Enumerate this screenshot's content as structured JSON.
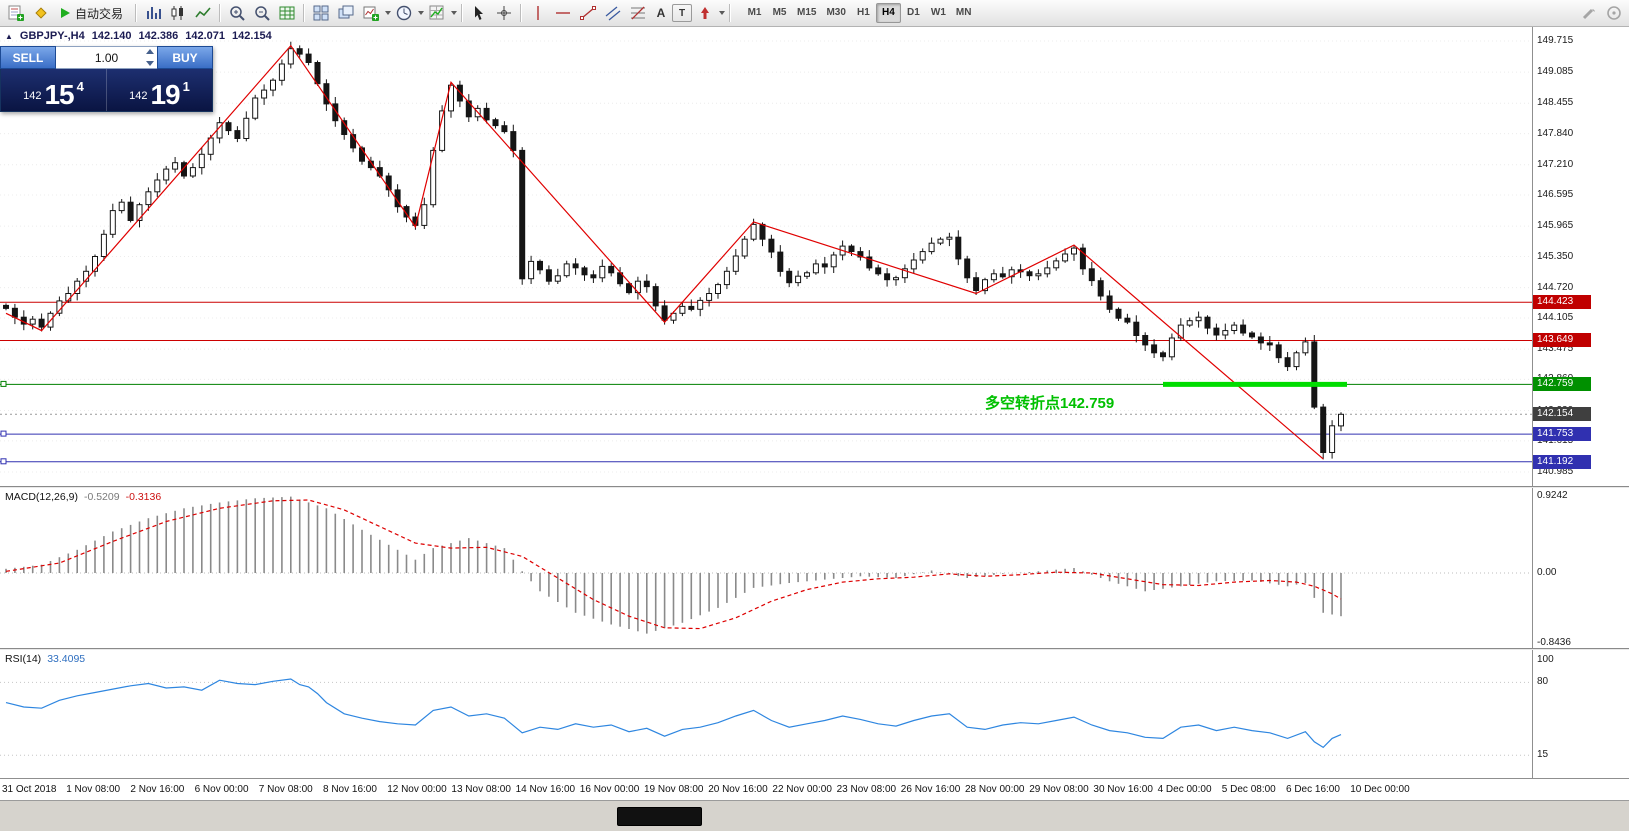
{
  "icons": {
    "collapse_triangle": "▲",
    "text_tool": "A",
    "frame_tool": "T"
  },
  "toolbar": {
    "autotrading_label": "自动交易",
    "timeframes": [
      "M1",
      "M5",
      "M15",
      "M30",
      "H1",
      "H4",
      "D1",
      "W1",
      "MN"
    ],
    "active_timeframe": "H4"
  },
  "chart": {
    "symbol_header": {
      "symbol": "GBPJPY-,H4",
      "open": "142.140",
      "high": "142.386",
      "low": "142.071",
      "close": "142.154"
    },
    "trade_panel": {
      "sell_label": "SELL",
      "buy_label": "BUY",
      "lot": "1.00",
      "sell_price_small": "142",
      "sell_price_big": "15",
      "sell_price_sup": "4",
      "buy_price_small": "142",
      "buy_price_big": "19",
      "buy_price_sup": "1"
    },
    "annotation": {
      "text": "多空转折点142.759",
      "color": "#00c000",
      "x_index": 110,
      "price": 142.28
    }
  },
  "macd": {
    "title": "MACD(12,26,9)",
    "value_main": "-0.5209",
    "value_signal": "-0.3136",
    "axis": [
      {
        "text": "0.9242",
        "v": 0.9242
      },
      {
        "text": "0.00",
        "v": 0
      },
      {
        "text": "-0.8436",
        "v": -0.8436
      }
    ]
  },
  "rsi": {
    "title": "RSI(14)",
    "value": "33.4095",
    "axis": [
      {
        "text": "100",
        "v": 100
      },
      {
        "text": "80",
        "v": 80
      },
      {
        "text": "15",
        "v": 15
      }
    ]
  },
  "chart_data": {
    "type": "candlestick+indicators",
    "symbol": "GBPJPY-",
    "timeframe": "H4",
    "y_axis": {
      "top": 149.715,
      "bottom": 140.985
    },
    "y_ticks": [
      149.715,
      149.085,
      148.455,
      147.84,
      147.21,
      146.595,
      145.965,
      145.35,
      144.72,
      144.105,
      143.475,
      142.86,
      142.23,
      141.615,
      140.985
    ],
    "close": [
      144.3,
      144.12,
      143.98,
      144.08,
      143.92,
      144.2,
      144.45,
      144.6,
      144.85,
      145.05,
      145.35,
      145.8,
      146.28,
      146.45,
      146.08,
      146.4,
      146.66,
      146.9,
      147.12,
      147.25,
      146.98,
      147.15,
      147.42,
      147.75,
      148.06,
      147.9,
      147.74,
      148.15,
      148.56,
      148.72,
      148.92,
      149.25,
      149.56,
      149.45,
      149.28,
      148.85,
      148.44,
      148.1,
      147.82,
      147.55,
      147.28,
      147.15,
      146.98,
      146.7,
      146.36,
      146.15,
      145.98,
      146.4,
      147.5,
      148.3,
      148.82,
      148.5,
      148.18,
      148.35,
      148.12,
      148.0,
      147.88,
      147.5,
      144.9,
      145.25,
      145.08,
      144.85,
      144.96,
      145.2,
      145.12,
      144.98,
      144.92,
      145.15,
      145.02,
      144.8,
      144.62,
      144.85,
      144.74,
      144.35,
      144.06,
      144.2,
      144.34,
      144.28,
      144.46,
      144.6,
      144.78,
      145.05,
      145.36,
      145.7,
      146.0,
      145.7,
      145.44,
      145.05,
      144.82,
      144.95,
      145.02,
      145.2,
      145.14,
      145.38,
      145.56,
      145.45,
      145.34,
      145.12,
      145.0,
      144.88,
      144.92,
      145.1,
      145.28,
      145.45,
      145.62,
      145.7,
      145.74,
      145.3,
      144.92,
      144.66,
      144.88,
      145.0,
      144.94,
      145.08,
      145.04,
      144.96,
      145.0,
      145.12,
      145.26,
      145.4,
      145.52,
      145.1,
      144.86,
      144.55,
      144.28,
      144.1,
      144.02,
      143.75,
      143.56,
      143.4,
      143.32,
      143.7,
      143.96,
      144.05,
      144.12,
      143.9,
      143.76,
      143.85,
      143.96,
      143.8,
      143.72,
      143.6,
      143.56,
      143.3,
      143.12,
      143.4,
      143.62,
      142.3,
      141.38,
      141.92,
      142.154
    ],
    "zigzag": [
      [
        0,
        144.2
      ],
      [
        4,
        143.85
      ],
      [
        32,
        149.62
      ],
      [
        46,
        145.95
      ],
      [
        50,
        148.88
      ],
      [
        74,
        144.02
      ],
      [
        84,
        146.05
      ],
      [
        109,
        144.6
      ],
      [
        120,
        145.58
      ],
      [
        148,
        141.25
      ]
    ],
    "hlines": [
      {
        "price": 144.423,
        "color": "#cc0000",
        "label": "144.423",
        "label_bg": "#c00000"
      },
      {
        "price": 143.649,
        "color": "#cc0000",
        "label": "143.649",
        "label_bg": "#c00000"
      },
      {
        "price": 142.759,
        "color": "#008000",
        "label": "142.759",
        "label_bg": "#009000",
        "bold_segment": [
          130,
          150
        ],
        "bold_color": "#00dd00",
        "marker": true
      },
      {
        "price": 141.753,
        "color": "#3030b0",
        "label": "141.753",
        "label_bg": "#3030b0",
        "marker": true
      },
      {
        "price": 141.192,
        "color": "#3030b0",
        "label": "141.192",
        "label_bg": "#3030b0",
        "marker": true
      }
    ],
    "bid_line": {
      "price": 142.154,
      "label": "142.154",
      "label_bg": "#3f3f3f",
      "color": "#999999"
    },
    "macd": {
      "range": [
        -0.8436,
        0.9242
      ],
      "main_points": [
        [
          0,
          0.05
        ],
        [
          4,
          0.1
        ],
        [
          8,
          0.28
        ],
        [
          12,
          0.5
        ],
        [
          16,
          0.66
        ],
        [
          20,
          0.78
        ],
        [
          24,
          0.85
        ],
        [
          28,
          0.9
        ],
        [
          32,
          0.92
        ],
        [
          36,
          0.78
        ],
        [
          40,
          0.52
        ],
        [
          44,
          0.28
        ],
        [
          46,
          0.16
        ],
        [
          48,
          0.3
        ],
        [
          52,
          0.42
        ],
        [
          56,
          0.3
        ],
        [
          58,
          0.02
        ],
        [
          60,
          -0.22
        ],
        [
          64,
          -0.48
        ],
        [
          68,
          -0.62
        ],
        [
          72,
          -0.73
        ],
        [
          76,
          -0.6
        ],
        [
          80,
          -0.42
        ],
        [
          84,
          -0.18
        ],
        [
          88,
          -0.12
        ],
        [
          92,
          -0.08
        ],
        [
          96,
          -0.04
        ],
        [
          100,
          -0.06
        ],
        [
          104,
          0.03
        ],
        [
          108,
          -0.06
        ],
        [
          112,
          -0.01
        ],
        [
          116,
          0.02
        ],
        [
          120,
          0.06
        ],
        [
          124,
          -0.1
        ],
        [
          128,
          -0.22
        ],
        [
          132,
          -0.16
        ],
        [
          136,
          -0.1
        ],
        [
          140,
          -0.09
        ],
        [
          144,
          -0.16
        ],
        [
          146,
          -0.12
        ],
        [
          147,
          -0.3
        ],
        [
          148,
          -0.48
        ],
        [
          150,
          -0.52
        ]
      ],
      "signal_points": [
        [
          0,
          0.02
        ],
        [
          6,
          0.12
        ],
        [
          12,
          0.38
        ],
        [
          18,
          0.62
        ],
        [
          24,
          0.78
        ],
        [
          30,
          0.87
        ],
        [
          34,
          0.88
        ],
        [
          38,
          0.76
        ],
        [
          42,
          0.56
        ],
        [
          46,
          0.36
        ],
        [
          50,
          0.3
        ],
        [
          54,
          0.31
        ],
        [
          58,
          0.2
        ],
        [
          62,
          -0.06
        ],
        [
          66,
          -0.32
        ],
        [
          70,
          -0.52
        ],
        [
          74,
          -0.66
        ],
        [
          78,
          -0.67
        ],
        [
          82,
          -0.54
        ],
        [
          86,
          -0.34
        ],
        [
          90,
          -0.2
        ],
        [
          94,
          -0.11
        ],
        [
          98,
          -0.07
        ],
        [
          102,
          -0.05
        ],
        [
          106,
          -0.01
        ],
        [
          110,
          -0.04
        ],
        [
          114,
          -0.02
        ],
        [
          118,
          0.01
        ],
        [
          122,
          0.0
        ],
        [
          126,
          -0.07
        ],
        [
          130,
          -0.14
        ],
        [
          134,
          -0.15
        ],
        [
          138,
          -0.11
        ],
        [
          142,
          -0.09
        ],
        [
          145,
          -0.11
        ],
        [
          147,
          -0.16
        ],
        [
          149,
          -0.25
        ],
        [
          150,
          -0.3136
        ]
      ]
    },
    "rsi": {
      "range": [
        0,
        100
      ],
      "levels": [
        80,
        15
      ],
      "points": [
        [
          0,
          62
        ],
        [
          2,
          58
        ],
        [
          4,
          57
        ],
        [
          6,
          64
        ],
        [
          8,
          68
        ],
        [
          10,
          71
        ],
        [
          12,
          74
        ],
        [
          14,
          77
        ],
        [
          16,
          79
        ],
        [
          18,
          75
        ],
        [
          20,
          76
        ],
        [
          22,
          73
        ],
        [
          24,
          82
        ],
        [
          26,
          79
        ],
        [
          28,
          78
        ],
        [
          30,
          81
        ],
        [
          32,
          83
        ],
        [
          33,
          78
        ],
        [
          34,
          76
        ],
        [
          35,
          70
        ],
        [
          36,
          62
        ],
        [
          38,
          52
        ],
        [
          40,
          48
        ],
        [
          42,
          45
        ],
        [
          44,
          43
        ],
        [
          46,
          42
        ],
        [
          48,
          55
        ],
        [
          50,
          58
        ],
        [
          52,
          50
        ],
        [
          54,
          52
        ],
        [
          56,
          48
        ],
        [
          58,
          35
        ],
        [
          60,
          40
        ],
        [
          62,
          38
        ],
        [
          64,
          43
        ],
        [
          66,
          40
        ],
        [
          68,
          42
        ],
        [
          70,
          36
        ],
        [
          72,
          39
        ],
        [
          74,
          32
        ],
        [
          76,
          38
        ],
        [
          78,
          40
        ],
        [
          80,
          44
        ],
        [
          82,
          50
        ],
        [
          84,
          55
        ],
        [
          86,
          46
        ],
        [
          88,
          40
        ],
        [
          90,
          43
        ],
        [
          92,
          46
        ],
        [
          94,
          50
        ],
        [
          96,
          47
        ],
        [
          98,
          43
        ],
        [
          100,
          41
        ],
        [
          102,
          46
        ],
        [
          104,
          50
        ],
        [
          106,
          52
        ],
        [
          108,
          40
        ],
        [
          110,
          38
        ],
        [
          112,
          42
        ],
        [
          114,
          44
        ],
        [
          116,
          43
        ],
        [
          118,
          46
        ],
        [
          120,
          49
        ],
        [
          122,
          42
        ],
        [
          124,
          37
        ],
        [
          126,
          35
        ],
        [
          128,
          31
        ],
        [
          130,
          30
        ],
        [
          132,
          40
        ],
        [
          134,
          42
        ],
        [
          136,
          37
        ],
        [
          138,
          40
        ],
        [
          140,
          37
        ],
        [
          142,
          35
        ],
        [
          144,
          30
        ],
        [
          146,
          36
        ],
        [
          147,
          27
        ],
        [
          148,
          22
        ],
        [
          149,
          30
        ],
        [
          150,
          33.4
        ]
      ]
    },
    "x_labels": [
      "31 Oct 2018",
      "1 Nov 08:00",
      "2 Nov 16:00",
      "6 Nov 00:00",
      "7 Nov 08:00",
      "8 Nov 16:00",
      "12 Nov 00:00",
      "13 Nov 08:00",
      "14 Nov 16:00",
      "16 Nov 00:00",
      "19 Nov 08:00",
      "20 Nov 16:00",
      "22 Nov 00:00",
      "23 Nov 08:00",
      "26 Nov 16:00",
      "28 Nov 00:00",
      "29 Nov 08:00",
      "30 Nov 16:00",
      "4 Dec 00:00",
      "5 Dec 08:00",
      "6 Dec 16:00",
      "10 Dec 00:00"
    ]
  }
}
